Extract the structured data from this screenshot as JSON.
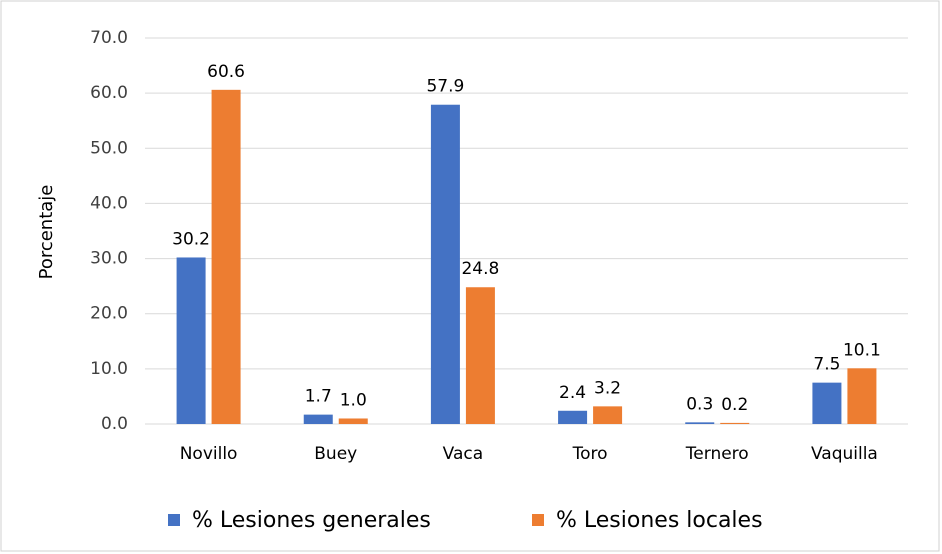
{
  "chart_data": {
    "type": "bar",
    "y_label": "Porcentaje",
    "categories": [
      "Novillo",
      "Buey",
      "Vaca",
      "Toro",
      "Ternero",
      "Vaquilla"
    ],
    "series": [
      {
        "name": "% Lesiones generales",
        "color": "#4472c4",
        "values": [
          30.2,
          1.7,
          57.9,
          2.4,
          0.3,
          7.5
        ],
        "value_labels": [
          "30.2",
          "1.7",
          "57.9",
          "2.4",
          "0.3",
          "7.5"
        ]
      },
      {
        "name": "% Lesiones locales",
        "color": "#ed7d31",
        "values": [
          60.6,
          1.0,
          24.8,
          3.2,
          0.2,
          10.1
        ],
        "value_labels": [
          "60.6",
          "1.0",
          "24.8",
          "3.2",
          "0.2",
          "10.1"
        ]
      }
    ],
    "ylim": [
      0,
      70
    ],
    "yticks": [
      {
        "value": 0,
        "label": "0.0"
      },
      {
        "value": 10,
        "label": "10.0"
      },
      {
        "value": 20,
        "label": "20.0"
      },
      {
        "value": 30,
        "label": "30.0"
      },
      {
        "value": 40,
        "label": "40.0"
      },
      {
        "value": 50,
        "label": "50.0"
      },
      {
        "value": 60,
        "label": "60.0"
      },
      {
        "value": 70,
        "label": "70.0"
      }
    ],
    "grid": true,
    "legend": "bottom"
  }
}
